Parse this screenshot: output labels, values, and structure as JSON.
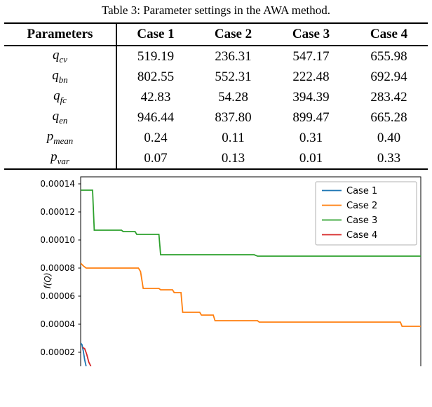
{
  "table": {
    "caption": "Table 3: Parameter settings in the AWA method.",
    "header": [
      "Parameters",
      "Case 1",
      "Case 2",
      "Case 3",
      "Case 4"
    ],
    "rows": [
      {
        "param_base": "q",
        "param_sub": "cv",
        "values": [
          "519.19",
          "236.31",
          "547.17",
          "655.98"
        ]
      },
      {
        "param_base": "q",
        "param_sub": "bn",
        "values": [
          "802.55",
          "552.31",
          "222.48",
          "692.94"
        ]
      },
      {
        "param_base": "q",
        "param_sub": "fc",
        "values": [
          "42.83",
          "54.28",
          "394.39",
          "283.42"
        ]
      },
      {
        "param_base": "q",
        "param_sub": "en",
        "values": [
          "946.44",
          "837.80",
          "899.47",
          "665.28"
        ]
      },
      {
        "param_base": "p",
        "param_sub": "mean",
        "values": [
          "0.24",
          "0.11",
          "0.31",
          "0.40"
        ]
      },
      {
        "param_base": "p",
        "param_sub": "var",
        "values": [
          "0.07",
          "0.13",
          "0.01",
          "0.33"
        ]
      }
    ]
  },
  "chart_data": {
    "type": "line",
    "title": "",
    "xlabel": "",
    "ylabel": "f(Q)",
    "grid": false,
    "legend_position": "upper right",
    "yticks": [
      2e-05,
      4e-05,
      6e-05,
      8e-05,
      0.0001,
      0.00012,
      0.00014
    ],
    "ylim_visible": [
      1e-05,
      0.000145
    ],
    "x_range": [
      0,
      100
    ],
    "note": "Figure is cropped at the bottom of the screenshot; x-axis not visible.",
    "series": [
      {
        "name": "Case 1",
        "color": "#1f77b4",
        "points": [
          [
            0,
            2.65e-05
          ],
          [
            0.4,
            2.55e-05
          ],
          [
            0.8,
            2.05e-05
          ],
          [
            1.2,
            1.45e-05
          ],
          [
            1.6,
            1e-05
          ]
        ]
      },
      {
        "name": "Case 2",
        "color": "#ff7f0e",
        "points": [
          [
            0,
            8.35e-05
          ],
          [
            0.8,
            8.15e-05
          ],
          [
            1.6,
            8e-05
          ],
          [
            17,
            8e-05
          ],
          [
            17.6,
            7.75e-05
          ],
          [
            18.4,
            6.55e-05
          ],
          [
            23,
            6.55e-05
          ],
          [
            23.5,
            6.45e-05
          ],
          [
            27,
            6.45e-05
          ],
          [
            27.5,
            6.25e-05
          ],
          [
            29.5,
            6.25e-05
          ],
          [
            30,
            4.85e-05
          ],
          [
            35,
            4.85e-05
          ],
          [
            35.5,
            4.65e-05
          ],
          [
            39,
            4.65e-05
          ],
          [
            39.5,
            4.25e-05
          ],
          [
            52,
            4.25e-05
          ],
          [
            52.5,
            4.15e-05
          ],
          [
            94,
            4.15e-05
          ],
          [
            94.5,
            3.85e-05
          ],
          [
            100,
            3.85e-05
          ]
        ]
      },
      {
        "name": "Case 3",
        "color": "#2ca02c",
        "points": [
          [
            0,
            0.0001355
          ],
          [
            3.5,
            0.0001355
          ],
          [
            4,
            0.000107
          ],
          [
            12,
            0.000107
          ],
          [
            12.5,
            0.000106
          ],
          [
            16,
            0.000106
          ],
          [
            16.5,
            0.000104
          ],
          [
            23,
            0.000104
          ],
          [
            23.5,
            8.95e-05
          ],
          [
            51,
            8.95e-05
          ],
          [
            52,
            8.85e-05
          ],
          [
            100,
            8.85e-05
          ]
        ]
      },
      {
        "name": "Case 4",
        "color": "#d62728",
        "points": [
          [
            0.6,
            2.35e-05
          ],
          [
            1.2,
            2.25e-05
          ],
          [
            1.8,
            1.85e-05
          ],
          [
            2.4,
            1.3e-05
          ],
          [
            3,
            1e-05
          ]
        ]
      }
    ]
  }
}
